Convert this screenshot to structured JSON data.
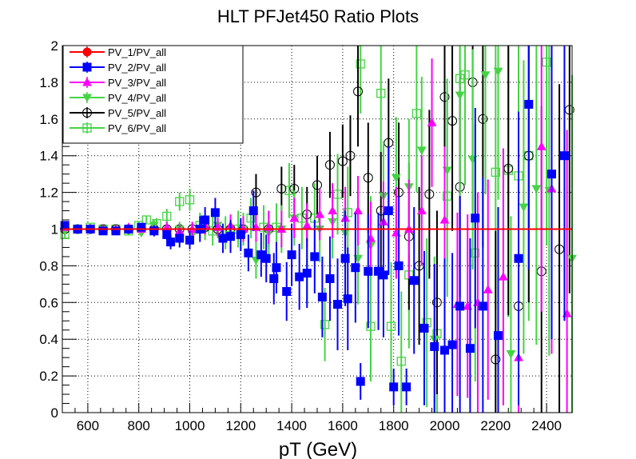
{
  "chart_data": {
    "type": "scatter",
    "title": "HLT PFJet450 Ratio Plots",
    "xlabel": "pT (GeV)",
    "ylabel": "",
    "xlim": [
      500,
      2500
    ],
    "ylim": [
      0,
      2
    ],
    "grid": true,
    "legend_position": "top-left",
    "x_ticks": [
      600,
      800,
      1000,
      1200,
      1400,
      1600,
      1800,
      2000,
      2200,
      2400
    ],
    "y_ticks": [
      0,
      0.2,
      0.4,
      0.6,
      0.8,
      1,
      1.2,
      1.4,
      1.6,
      1.8,
      2
    ],
    "x_tick_labels": [
      "600",
      "800",
      "1000",
      "1200",
      "1400",
      "1600",
      "1800",
      "2000",
      "2200",
      "2400"
    ],
    "y_tick_labels": [
      "0",
      "0.2",
      "0.4",
      "0.6",
      "0.8",
      "1",
      "1.2",
      "1.4",
      "1.6",
      "1.8",
      "2"
    ],
    "series": [
      {
        "name": "PV_1/PV_all",
        "color": "#ff0000",
        "marker": "circle-filled",
        "style": "line",
        "x": [
          500,
          2500
        ],
        "y": [
          1.0,
          1.0
        ],
        "err": [
          0,
          0
        ]
      },
      {
        "name": "PV_2/PV_all",
        "color": "#0000ff",
        "marker": "square-filled",
        "x": [
          510,
          560,
          610,
          660,
          710,
          760,
          810,
          860,
          910,
          925,
          960,
          1000,
          1040,
          1060,
          1100,
          1130,
          1160,
          1200,
          1230,
          1250,
          1280,
          1300,
          1330,
          1340,
          1380,
          1400,
          1430,
          1460,
          1490,
          1520,
          1550,
          1580,
          1610,
          1620,
          1650,
          1670,
          1700,
          1740,
          1760,
          1780,
          1800,
          1820,
          1850,
          1880,
          1920,
          1960,
          2000,
          2030,
          2060,
          2100,
          2120,
          2150,
          2210,
          2290,
          2330,
          2420,
          2470
        ],
        "y": [
          1.02,
          1.0,
          1.0,
          0.99,
          0.99,
          1.0,
          1.01,
          0.99,
          0.97,
          0.93,
          0.95,
          0.94,
          1.0,
          1.05,
          1.09,
          0.95,
          0.96,
          0.97,
          0.87,
          1.1,
          0.86,
          0.84,
          0.73,
          0.79,
          0.66,
          0.86,
          0.74,
          0.76,
          0.85,
          0.63,
          0.73,
          0.59,
          0.84,
          0.62,
          0.79,
          0.17,
          0.77,
          0.77,
          0.75,
          1.1,
          0.14,
          0.8,
          0.14,
          0.72,
          0.46,
          0.36,
          0.34,
          0.37,
          0.58,
          0.35,
          1.06,
          0.58,
          0.42,
          0.84,
          1.68,
          1.3,
          1.4
        ],
        "err": [
          0.02,
          0.01,
          0.01,
          0.01,
          0.01,
          0.02,
          0.02,
          0.03,
          0.03,
          0.04,
          0.05,
          0.05,
          0.07,
          0.07,
          0.08,
          0.08,
          0.09,
          0.09,
          0.1,
          0.11,
          0.12,
          0.13,
          0.14,
          0.14,
          0.16,
          0.17,
          0.18,
          0.19,
          0.2,
          0.22,
          0.23,
          0.25,
          0.26,
          0.28,
          0.3,
          0.1,
          0.31,
          0.32,
          0.34,
          0.35,
          0.1,
          0.38,
          0.1,
          0.4,
          0.42,
          0.45,
          0.5,
          0.5,
          0.6,
          0.6,
          0.6,
          0.7,
          0.7,
          0.8,
          0.9,
          0.9,
          0.9
        ]
      },
      {
        "name": "PV_3/PV_all",
        "color": "#ff00ff",
        "marker": "triangle-up",
        "x": [
          510,
          560,
          610,
          660,
          710,
          760,
          810,
          860,
          910,
          960,
          1010,
          1060,
          1110,
          1160,
          1210,
          1260,
          1310,
          1360,
          1410,
          1460,
          1510,
          1560,
          1610,
          1660,
          1710,
          1760,
          1810,
          1860,
          1910,
          1950,
          2000,
          2050,
          2090,
          2130,
          2170,
          2230,
          2290,
          2380,
          2420,
          2480
        ],
        "y": [
          1.01,
          1.0,
          1.0,
          1.0,
          1.0,
          1.01,
          1.0,
          1.0,
          1.01,
          0.99,
          1.0,
          1.02,
          1.01,
          1.02,
          1.0,
          1.01,
          1.01,
          1.0,
          1.06,
          1.02,
          1.08,
          1.1,
          1.06,
          1.1,
          0.95,
          1.04,
          0.98,
          1.0,
          1.1,
          1.58,
          1.05,
          0.59,
          0.58,
          0.6,
          0.67,
          0.74,
          0.3,
          1.45,
          1.22,
          0.54
        ],
        "err": [
          0.01,
          0.01,
          0.01,
          0.01,
          0.01,
          0.02,
          0.02,
          0.02,
          0.03,
          0.03,
          0.04,
          0.05,
          0.05,
          0.06,
          0.07,
          0.08,
          0.09,
          0.1,
          0.11,
          0.12,
          0.14,
          0.15,
          0.17,
          0.19,
          0.2,
          0.22,
          0.25,
          0.27,
          0.3,
          0.35,
          0.4,
          0.5,
          0.5,
          0.6,
          0.6,
          0.7,
          0.7,
          0.9,
          0.9,
          1.0
        ]
      },
      {
        "name": "PV_4/PV_all",
        "color": "#44d444",
        "marker": "triangle-down",
        "x": [
          510,
          560,
          610,
          660,
          710,
          760,
          810,
          860,
          910,
          960,
          1010,
          1060,
          1110,
          1160,
          1210,
          1260,
          1310,
          1360,
          1410,
          1460,
          1510,
          1560,
          1610,
          1660,
          1710,
          1760,
          1810,
          1860,
          1910,
          1960,
          2010,
          2060,
          2110,
          2160,
          2210,
          2260,
          2310,
          2360,
          2410,
          2500
        ],
        "y": [
          0.99,
          1.0,
          1.0,
          1.0,
          0.99,
          1.0,
          0.98,
          1.02,
          0.98,
          1.0,
          0.97,
          1.0,
          1.02,
          0.97,
          1.0,
          0.83,
          0.98,
          1.0,
          1.06,
          0.76,
          1.0,
          1.04,
          0.98,
          0.84,
          0.91,
          1.18,
          1.28,
          1.23,
          1.43,
          0.4,
          1.32,
          1.73,
          1.38,
          1.84,
          1.86,
          0.32,
          1.12,
          1.22,
          1.21,
          0.84
        ],
        "err": [
          0.02,
          0.01,
          0.01,
          0.01,
          0.01,
          0.02,
          0.02,
          0.03,
          0.03,
          0.04,
          0.05,
          0.06,
          0.07,
          0.08,
          0.09,
          0.1,
          0.12,
          0.13,
          0.15,
          0.16,
          0.18,
          0.2,
          0.22,
          0.25,
          0.27,
          0.3,
          0.33,
          0.37,
          0.4,
          0.45,
          0.5,
          0.55,
          0.6,
          0.65,
          0.7,
          0.75,
          0.8,
          0.85,
          0.9,
          1.0
        ]
      },
      {
        "name": "PV_5/PV_all",
        "color": "#000000",
        "marker": "circle-open",
        "x": [
          510,
          560,
          610,
          660,
          710,
          760,
          810,
          860,
          910,
          960,
          1010,
          1060,
          1110,
          1160,
          1210,
          1260,
          1310,
          1360,
          1410,
          1460,
          1500,
          1550,
          1600,
          1630,
          1660,
          1700,
          1750,
          1780,
          1820,
          1860,
          1900,
          1940,
          1970,
          2000,
          2030,
          2060,
          2110,
          2150,
          2200,
          2250,
          2290,
          2330,
          2380,
          2450,
          2490
        ],
        "y": [
          1.0,
          1.0,
          1.0,
          1.0,
          1.0,
          1.0,
          1.0,
          1.0,
          1.0,
          1.0,
          1.0,
          1.01,
          1.0,
          1.0,
          1.0,
          1.2,
          1.0,
          1.22,
          1.22,
          1.08,
          1.24,
          1.35,
          1.37,
          1.4,
          1.75,
          1.28,
          1.1,
          1.47,
          1.2,
          0.96,
          0.8,
          1.19,
          0.6,
          1.72,
          1.59,
          1.23,
          1.8,
          1.6,
          0.29,
          1.33,
          0.58,
          1.4,
          0.77,
          0.89,
          1.65
        ],
        "err": [
          0.01,
          0.01,
          0.01,
          0.01,
          0.01,
          0.01,
          0.02,
          0.02,
          0.02,
          0.03,
          0.03,
          0.04,
          0.04,
          0.05,
          0.06,
          0.1,
          0.1,
          0.12,
          0.13,
          0.15,
          0.16,
          0.18,
          0.2,
          0.22,
          0.3,
          0.3,
          0.32,
          0.35,
          0.38,
          0.4,
          0.43,
          0.46,
          0.5,
          0.55,
          0.6,
          0.6,
          0.7,
          0.7,
          0.7,
          0.8,
          0.8,
          0.8,
          0.9,
          0.9,
          1.0
        ]
      },
      {
        "name": "PV_6/PV_all",
        "color": "#44d444",
        "marker": "square-open",
        "x": [
          510,
          560,
          610,
          660,
          710,
          760,
          800,
          830,
          870,
          910,
          960,
          1000,
          1040,
          1090,
          1140,
          1190,
          1240,
          1290,
          1340,
          1390,
          1440,
          1490,
          1530,
          1580,
          1620,
          1670,
          1710,
          1750,
          1790,
          1830,
          1860,
          1890,
          1930,
          1970,
          2010,
          2060,
          2080,
          2120,
          2200,
          2250,
          2290,
          2330,
          2400
        ],
        "y": [
          0.97,
          1.0,
          1.01,
          1.0,
          1.0,
          0.99,
          1.02,
          1.05,
          1.03,
          1.07,
          1.15,
          1.16,
          1.02,
          0.99,
          0.98,
          1.0,
          1.06,
          1.01,
          1.01,
          1.21,
          1.06,
          1.06,
          0.48,
          1.19,
          1.09,
          1.9,
          0.47,
          1.74,
          0.47,
          0.28,
          0.75,
          1.63,
          0.49,
          0.43,
          1.18,
          1.82,
          1.84,
          0.87,
          1.31,
          1.32,
          1.29,
          1.4,
          1.91
        ],
        "err": [
          0.02,
          0.01,
          0.01,
          0.01,
          0.01,
          0.02,
          0.02,
          0.02,
          0.03,
          0.04,
          0.05,
          0.06,
          0.07,
          0.08,
          0.09,
          0.1,
          0.11,
          0.12,
          0.13,
          0.15,
          0.17,
          0.19,
          0.2,
          0.22,
          0.25,
          0.27,
          0.3,
          0.33,
          0.35,
          0.38,
          0.4,
          0.43,
          0.46,
          0.5,
          0.55,
          0.6,
          0.6,
          0.7,
          0.75,
          0.8,
          0.85,
          0.9,
          1.0
        ]
      }
    ]
  }
}
